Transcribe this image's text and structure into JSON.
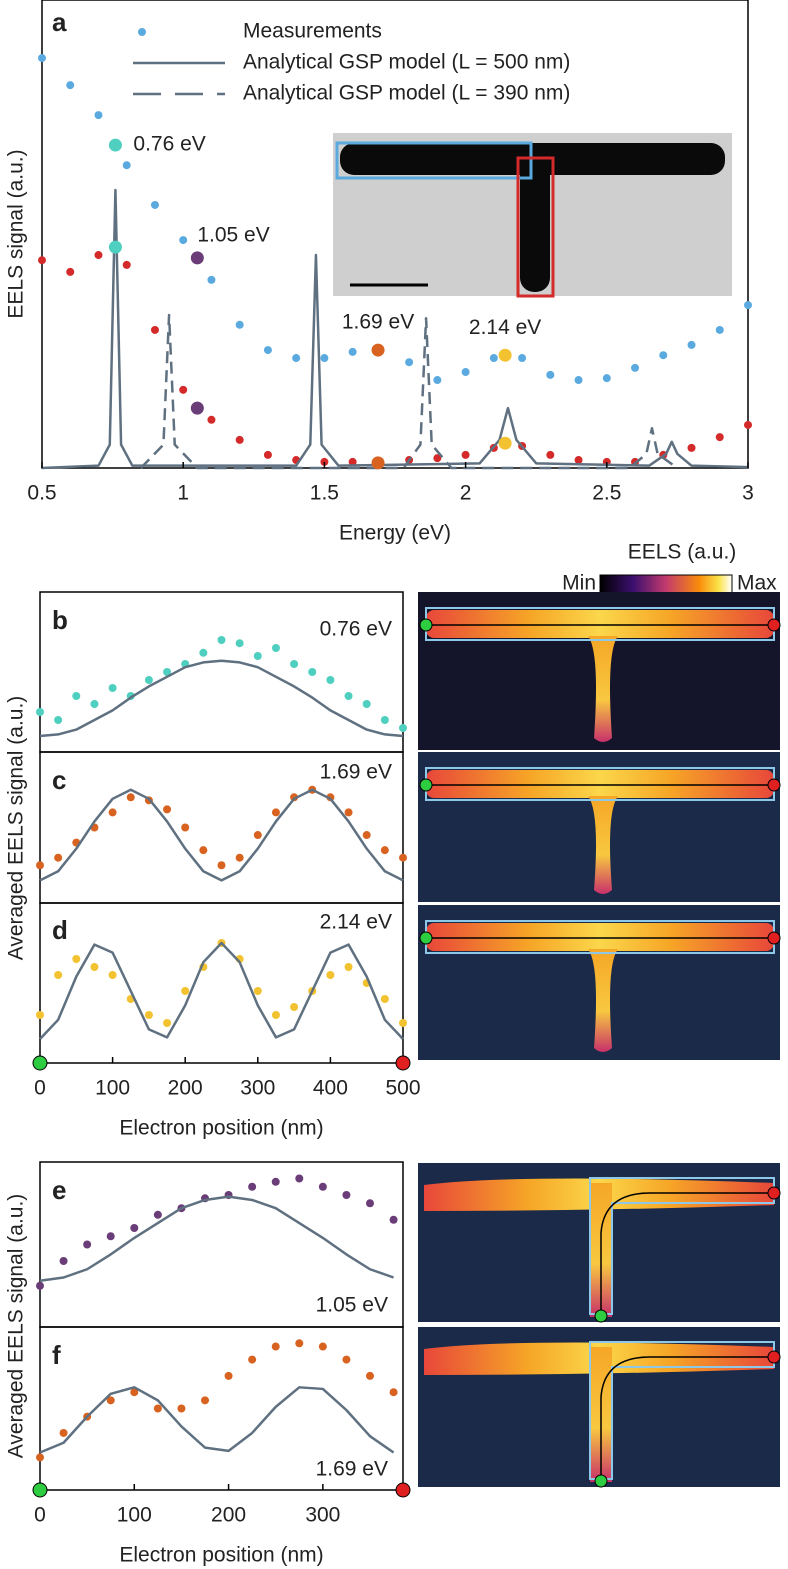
{
  "colorbar": {
    "title": "EELS (a.u.)",
    "min_label": "Min",
    "max_label": "Max"
  },
  "chart_data": [
    {
      "type": "line",
      "panel": "a",
      "xlabel": "Energy (eV)",
      "ylabel": "EELS signal (a.u.)",
      "xlim": [
        0.5,
        3
      ],
      "ylim": [
        0,
        1
      ],
      "xticks": [
        0.5,
        1,
        1.5,
        2,
        2.5,
        3
      ],
      "series": [
        {
          "name": "Measurements",
          "style": "dots",
          "color": "#5aaae0",
          "x": [
            0.5,
            0.6,
            0.7,
            0.76,
            0.8,
            0.9,
            1.0,
            1.05,
            1.1,
            1.2,
            1.3,
            1.4,
            1.5,
            1.6,
            1.69,
            1.8,
            1.9,
            2.0,
            2.1,
            2.14,
            2.2,
            2.3,
            2.4,
            2.5,
            2.6,
            2.7,
            2.8,
            2.9,
            3.0
          ],
          "values": [
            0.876,
            0.818,
            0.754,
            0.69,
            0.647,
            0.562,
            0.487,
            0.449,
            0.402,
            0.306,
            0.252,
            0.235,
            0.235,
            0.248,
            0.252,
            0.226,
            0.188,
            0.205,
            0.235,
            0.241,
            0.235,
            0.199,
            0.188,
            0.192,
            0.214,
            0.241,
            0.263,
            0.295,
            0.348
          ]
        },
        {
          "style": "dots",
          "color": "#d42a2a",
          "x": [
            0.5,
            0.6,
            0.7,
            0.76,
            0.8,
            0.9,
            1.0,
            1.05,
            1.1,
            1.2,
            1.3,
            1.4,
            1.5,
            1.6,
            1.69,
            1.8,
            1.9,
            2.0,
            2.1,
            2.14,
            2.2,
            2.3,
            2.4,
            2.5,
            2.6,
            2.7,
            2.8,
            2.9,
            3.0
          ],
          "values": [
            0.444,
            0.419,
            0.455,
            0.472,
            0.434,
            0.295,
            0.167,
            0.128,
            0.103,
            0.06,
            0.028,
            0.017,
            0.013,
            0.013,
            0.011,
            0.017,
            0.021,
            0.028,
            0.043,
            0.053,
            0.047,
            0.028,
            0.017,
            0.013,
            0.013,
            0.028,
            0.043,
            0.066,
            0.092
          ]
        },
        {
          "name": "Analytical GSP model (L = 500 nm)",
          "style": "solid",
          "color": "#5f7080",
          "x": [
            0.5,
            0.7,
            0.74,
            0.76,
            0.78,
            0.82,
            1.4,
            1.45,
            1.47,
            1.49,
            1.55,
            2.05,
            2.12,
            2.15,
            2.18,
            2.25,
            2.65,
            2.71,
            2.73,
            2.75,
            2.8,
            3.0
          ],
          "values": [
            0,
            0.005,
            0.05,
            0.594,
            0.05,
            0.005,
            0.005,
            0.05,
            0.455,
            0.05,
            0.005,
            0.01,
            0.06,
            0.128,
            0.06,
            0.01,
            0.005,
            0.03,
            0.056,
            0.03,
            0.005,
            0.002
          ]
        },
        {
          "name": "Analytical GSP model (L = 390 nm)",
          "style": "dashed",
          "color": "#5f7080",
          "x": [
            0.85,
            0.93,
            0.95,
            0.97,
            1.05,
            1.78,
            1.84,
            1.86,
            1.88,
            1.95,
            2.58,
            2.64,
            2.66,
            2.68,
            2.75
          ],
          "values": [
            0,
            0.05,
            0.327,
            0.05,
            0,
            0,
            0.05,
            0.32,
            0.05,
            0,
            0,
            0.03,
            0.085,
            0.03,
            0
          ]
        }
      ],
      "annotations": [
        {
          "text": "0.76 eV",
          "x": 0.76,
          "color": "#4fcfc0"
        },
        {
          "text": "1.05 eV",
          "x": 1.05,
          "color": "#6a3d78"
        },
        {
          "text": "1.69 eV",
          "x": 1.69,
          "color": "#d8621f"
        },
        {
          "text": "2.14 eV",
          "x": 2.14,
          "color": "#f2c230"
        }
      ]
    },
    {
      "type": "line",
      "panel": "b",
      "label": "0.76 eV",
      "ylabel": "Averaged EELS signal (a.u.)",
      "xlim": [
        0,
        500
      ],
      "ylim": [
        0,
        1
      ],
      "x": [
        0,
        25,
        50,
        75,
        100,
        125,
        150,
        175,
        200,
        225,
        250,
        275,
        300,
        325,
        350,
        375,
        400,
        425,
        450,
        475,
        500
      ],
      "series": [
        {
          "style": "dots",
          "color": "#4fcfc0",
          "values": [
            0.25,
            0.2,
            0.35,
            0.3,
            0.4,
            0.35,
            0.45,
            0.5,
            0.55,
            0.62,
            0.7,
            0.68,
            0.6,
            0.65,
            0.55,
            0.5,
            0.45,
            0.35,
            0.3,
            0.2,
            0.15
          ]
        },
        {
          "style": "solid",
          "color": "#5f7080",
          "values": [
            0.1,
            0.11,
            0.14,
            0.2,
            0.26,
            0.34,
            0.41,
            0.47,
            0.53,
            0.56,
            0.57,
            0.56,
            0.53,
            0.47,
            0.41,
            0.34,
            0.26,
            0.2,
            0.14,
            0.11,
            0.1
          ]
        }
      ]
    },
    {
      "type": "line",
      "panel": "c",
      "label": "1.69 eV",
      "xlim": [
        0,
        500
      ],
      "ylim": [
        0,
        1
      ],
      "x": [
        0,
        25,
        50,
        75,
        100,
        125,
        150,
        175,
        200,
        225,
        250,
        275,
        300,
        325,
        350,
        375,
        400,
        425,
        450,
        475,
        500
      ],
      "series": [
        {
          "style": "dots",
          "color": "#d8621f",
          "values": [
            0.25,
            0.3,
            0.4,
            0.5,
            0.6,
            0.7,
            0.68,
            0.62,
            0.5,
            0.35,
            0.25,
            0.3,
            0.45,
            0.6,
            0.7,
            0.75,
            0.7,
            0.6,
            0.45,
            0.35,
            0.3
          ]
        },
        {
          "style": "solid",
          "color": "#5f7080",
          "values": [
            0.15,
            0.21,
            0.36,
            0.54,
            0.69,
            0.75,
            0.69,
            0.54,
            0.36,
            0.21,
            0.15,
            0.21,
            0.36,
            0.54,
            0.69,
            0.75,
            0.69,
            0.54,
            0.36,
            0.21,
            0.15
          ]
        }
      ]
    },
    {
      "type": "line",
      "panel": "d",
      "label": "2.14 eV",
      "xlabel": "Electron position (nm)",
      "xlim": [
        0,
        500
      ],
      "ylim": [
        0,
        1
      ],
      "xticks": [
        0,
        100,
        200,
        300,
        400,
        500
      ],
      "x": [
        0,
        25,
        50,
        75,
        100,
        125,
        150,
        175,
        200,
        225,
        250,
        275,
        300,
        325,
        350,
        375,
        400,
        425,
        450,
        475,
        500
      ],
      "series": [
        {
          "style": "dots",
          "color": "#f2c230",
          "values": [
            0.3,
            0.55,
            0.65,
            0.6,
            0.55,
            0.4,
            0.3,
            0.25,
            0.45,
            0.6,
            0.75,
            0.65,
            0.45,
            0.3,
            0.35,
            0.45,
            0.55,
            0.6,
            0.5,
            0.4,
            0.25
          ]
        },
        {
          "style": "solid",
          "color": "#5f7080",
          "values": [
            0.15,
            0.27,
            0.54,
            0.74,
            0.69,
            0.45,
            0.21,
            0.16,
            0.36,
            0.63,
            0.75,
            0.63,
            0.36,
            0.16,
            0.21,
            0.45,
            0.69,
            0.74,
            0.54,
            0.27,
            0.15
          ]
        }
      ]
    },
    {
      "type": "line",
      "panel": "e",
      "label": "1.05 eV",
      "ylabel": "Averaged EELS signal (a.u.)",
      "xlim": [
        0,
        385
      ],
      "ylim": [
        0,
        1
      ],
      "x": [
        0,
        25,
        50,
        75,
        100,
        125,
        150,
        175,
        200,
        225,
        250,
        275,
        300,
        325,
        350,
        375
      ],
      "series": [
        {
          "style": "dots",
          "color": "#6a3d78",
          "values": [
            0.25,
            0.4,
            0.5,
            0.55,
            0.6,
            0.68,
            0.72,
            0.78,
            0.8,
            0.85,
            0.88,
            0.9,
            0.85,
            0.8,
            0.75,
            0.65
          ]
        },
        {
          "style": "solid",
          "color": "#5f7080",
          "values": [
            0.28,
            0.3,
            0.35,
            0.44,
            0.54,
            0.63,
            0.72,
            0.77,
            0.79,
            0.77,
            0.72,
            0.63,
            0.54,
            0.44,
            0.35,
            0.3
          ]
        }
      ]
    },
    {
      "type": "line",
      "panel": "f",
      "label": "1.69 eV",
      "xlabel": "Electron position (nm)",
      "xlim": [
        0,
        385
      ],
      "ylim": [
        0,
        1
      ],
      "xticks": [
        0,
        100,
        200,
        300
      ],
      "x": [
        0,
        25,
        50,
        75,
        100,
        125,
        150,
        175,
        200,
        225,
        250,
        275,
        300,
        325,
        350,
        375
      ],
      "series": [
        {
          "style": "dots",
          "color": "#d8621f",
          "values": [
            0.2,
            0.35,
            0.45,
            0.55,
            0.6,
            0.5,
            0.5,
            0.55,
            0.7,
            0.8,
            0.88,
            0.9,
            0.88,
            0.8,
            0.7,
            0.6
          ]
        },
        {
          "style": "solid",
          "color": "#5f7080",
          "values": [
            0.23,
            0.29,
            0.45,
            0.59,
            0.63,
            0.55,
            0.39,
            0.26,
            0.24,
            0.35,
            0.51,
            0.63,
            0.62,
            0.49,
            0.33,
            0.23
          ]
        }
      ]
    }
  ]
}
